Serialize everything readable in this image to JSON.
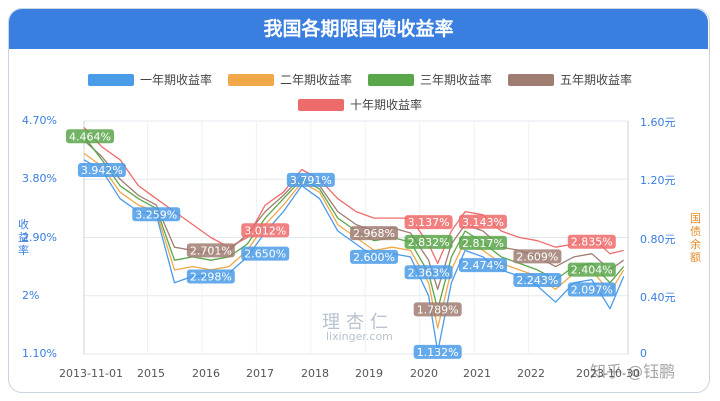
{
  "title": "我国各期限国债收益率",
  "legend": [
    {
      "label": "一年期收益率",
      "color": "#4a9be8"
    },
    {
      "label": "二年期收益率",
      "color": "#f0a848"
    },
    {
      "label": "三年期收益率",
      "color": "#5aa64a"
    },
    {
      "label": "五年期收益率",
      "color": "#a07c72"
    },
    {
      "label": "十年期收益率",
      "color": "#ee6b6b"
    }
  ],
  "y_left": {
    "title": "收益率",
    "ticks": [
      "4.70%",
      "3.80%",
      "2.90%",
      "2%",
      "1.10%"
    ]
  },
  "y_right": {
    "title": "国债余额",
    "ticks": [
      "1.60元",
      "1.20元",
      "0.80元",
      "0.40元",
      "0"
    ]
  },
  "x_ticks": [
    "2013-11-01",
    "2015",
    "2016",
    "2017",
    "2018",
    "2019",
    "2020",
    "2021",
    "2022",
    "2023-10-30"
  ],
  "watermark": {
    "name": "理杏仁",
    "url": "lixinger.com"
  },
  "signature": "知乎 @钰鹏",
  "chart_data": {
    "type": "line",
    "title": "我国各期限国债收益率",
    "ylabel": "收益率",
    "y2label": "国债余额",
    "ylim": [
      1.1,
      4.7
    ],
    "x_start": "2013-11-01",
    "x_end": "2023-10-30",
    "legend_position": "top",
    "grid": true,
    "x": [
      "2013-11",
      "2014-03",
      "2014-07",
      "2014-11",
      "2015-03",
      "2015-07",
      "2015-11",
      "2016-03",
      "2016-07",
      "2016-11",
      "2017-03",
      "2017-07",
      "2017-11",
      "2018-03",
      "2018-07",
      "2018-11",
      "2019-03",
      "2019-07",
      "2019-11",
      "2020-03",
      "2020-05",
      "2020-08",
      "2020-11",
      "2021-03",
      "2021-07",
      "2021-11",
      "2022-03",
      "2022-07",
      "2022-11",
      "2023-03",
      "2023-07",
      "2023-10"
    ],
    "series": [
      {
        "name": "一年期收益率",
        "color": "#4a9be8",
        "values": [
          4.1,
          3.94,
          3.5,
          3.3,
          3.25,
          2.2,
          2.3,
          2.3,
          2.35,
          2.6,
          2.98,
          3.3,
          3.7,
          3.5,
          3.0,
          2.8,
          2.6,
          2.65,
          2.6,
          2.0,
          1.132,
          2.2,
          2.7,
          2.6,
          2.4,
          2.3,
          2.15,
          1.9,
          2.2,
          2.25,
          1.8,
          2.3
        ]
      },
      {
        "name": "二年期收益率",
        "color": "#f0a848",
        "values": [
          4.2,
          4.0,
          3.6,
          3.4,
          3.3,
          2.4,
          2.45,
          2.4,
          2.45,
          2.7,
          3.1,
          3.4,
          3.75,
          3.6,
          3.1,
          2.9,
          2.7,
          2.75,
          2.7,
          2.2,
          1.5,
          2.4,
          2.85,
          2.7,
          2.5,
          2.4,
          2.3,
          2.1,
          2.35,
          2.4,
          2.05,
          2.4
        ]
      },
      {
        "name": "三年期收益率",
        "color": "#5aa64a",
        "values": [
          4.464,
          4.1,
          3.7,
          3.5,
          3.35,
          2.55,
          2.6,
          2.55,
          2.6,
          2.8,
          3.2,
          3.5,
          3.8,
          3.65,
          3.2,
          3.0,
          2.85,
          2.9,
          2.83,
          2.35,
          1.789,
          2.6,
          3.0,
          2.82,
          2.6,
          2.5,
          2.4,
          2.25,
          2.45,
          2.5,
          2.2,
          2.45
        ]
      },
      {
        "name": "五年期收益率",
        "color": "#a07c72",
        "values": [
          4.4,
          4.15,
          3.8,
          3.55,
          3.4,
          2.75,
          2.7,
          2.65,
          2.7,
          2.95,
          3.3,
          3.55,
          3.85,
          3.7,
          3.3,
          3.1,
          3.0,
          3.05,
          2.97,
          2.55,
          2.1,
          2.8,
          3.1,
          3.0,
          2.75,
          2.7,
          2.6,
          2.45,
          2.6,
          2.65,
          2.4,
          2.55
        ]
      },
      {
        "name": "十年期收益率",
        "color": "#ee6b6b",
        "values": [
          4.6,
          4.3,
          4.1,
          3.7,
          3.5,
          3.3,
          3.1,
          2.9,
          2.75,
          2.9,
          3.4,
          3.6,
          3.95,
          3.8,
          3.5,
          3.3,
          3.2,
          3.2,
          3.2,
          2.8,
          2.5,
          3.0,
          3.3,
          3.25,
          3.0,
          2.9,
          2.85,
          2.75,
          2.8,
          2.9,
          2.65,
          2.7
        ]
      }
    ],
    "annotations": [
      {
        "label": "4.464%",
        "date": "2013-11",
        "value": 4.464,
        "color": "#5aa64a"
      },
      {
        "label": "3.942%",
        "date": "2014-03",
        "value": 3.942,
        "color": "#4a9be8"
      },
      {
        "label": "3.259%",
        "date": "2015-03",
        "value": 3.259,
        "color": "#4a9be8"
      },
      {
        "label": "2.701%",
        "date": "2016-03",
        "value": 2.701,
        "color": "#a07c72"
      },
      {
        "label": "2.298%",
        "date": "2016-03",
        "value": 2.298,
        "color": "#4a9be8"
      },
      {
        "label": "3.012%",
        "date": "2017-03",
        "value": 3.012,
        "color": "#ee6b6b"
      },
      {
        "label": "2.650%",
        "date": "2017-03",
        "value": 2.65,
        "color": "#4a9be8"
      },
      {
        "label": "3.791%",
        "date": "2018-01",
        "value": 3.791,
        "color": "#4a9be8"
      },
      {
        "label": "2.968%",
        "date": "2019-03",
        "value": 2.968,
        "color": "#a07c72"
      },
      {
        "label": "2.600%",
        "date": "2019-03",
        "value": 2.6,
        "color": "#4a9be8"
      },
      {
        "label": "3.137%",
        "date": "2020-03",
        "value": 3.137,
        "color": "#ee6b6b"
      },
      {
        "label": "2.832%",
        "date": "2020-03",
        "value": 2.832,
        "color": "#5aa64a"
      },
      {
        "label": "2.363%",
        "date": "2020-03",
        "value": 2.363,
        "color": "#4a9be8"
      },
      {
        "label": "1.789%",
        "date": "2020-05",
        "value": 1.789,
        "color": "#a07c72"
      },
      {
        "label": "1.132%",
        "date": "2020-05",
        "value": 1.132,
        "color": "#4a9be8"
      },
      {
        "label": "3.143%",
        "date": "2021-03",
        "value": 3.143,
        "color": "#ee6b6b"
      },
      {
        "label": "2.817%",
        "date": "2021-03",
        "value": 2.817,
        "color": "#5aa64a"
      },
      {
        "label": "2.474%",
        "date": "2021-03",
        "value": 2.474,
        "color": "#4a9be8"
      },
      {
        "label": "2.609%",
        "date": "2022-03",
        "value": 2.609,
        "color": "#a07c72"
      },
      {
        "label": "2.243%",
        "date": "2022-03",
        "value": 2.243,
        "color": "#4a9be8"
      },
      {
        "label": "2.835%",
        "date": "2023-03",
        "value": 2.835,
        "color": "#ee6b6b"
      },
      {
        "label": "2.404%",
        "date": "2023-03",
        "value": 2.404,
        "color": "#5aa64a"
      },
      {
        "label": "2.097%",
        "date": "2023-03",
        "value": 2.097,
        "color": "#4a9be8"
      }
    ]
  }
}
